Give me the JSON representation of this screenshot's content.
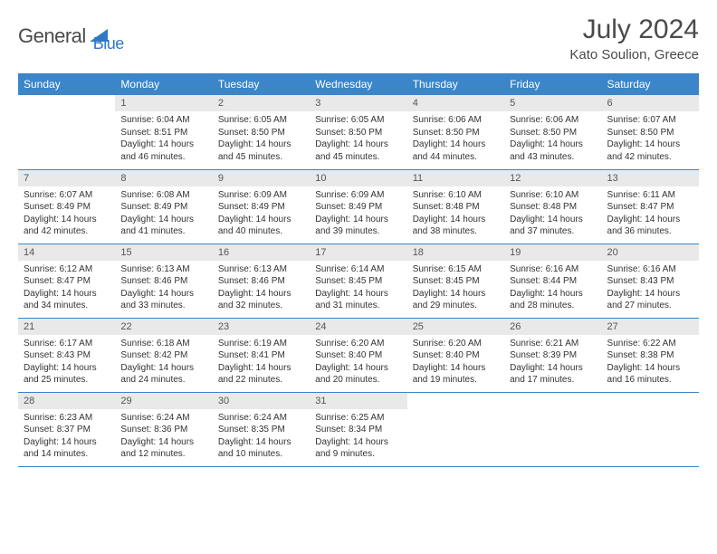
{
  "logo": {
    "text1": "General",
    "text2": "Blue"
  },
  "title": "July 2024",
  "location": "Kato Soulion, Greece",
  "colors": {
    "header_bg": "#3b85c8",
    "header_fg": "#ffffff",
    "daynum_bg": "#e9e9e9",
    "border": "#3b85c8",
    "logo_blue": "#2f78c4"
  },
  "weekdays": [
    "Sunday",
    "Monday",
    "Tuesday",
    "Wednesday",
    "Thursday",
    "Friday",
    "Saturday"
  ],
  "weeks": [
    [
      null,
      {
        "n": "1",
        "sr": "6:04 AM",
        "ss": "8:51 PM",
        "dl": "14 hours and 46 minutes."
      },
      {
        "n": "2",
        "sr": "6:05 AM",
        "ss": "8:50 PM",
        "dl": "14 hours and 45 minutes."
      },
      {
        "n": "3",
        "sr": "6:05 AM",
        "ss": "8:50 PM",
        "dl": "14 hours and 45 minutes."
      },
      {
        "n": "4",
        "sr": "6:06 AM",
        "ss": "8:50 PM",
        "dl": "14 hours and 44 minutes."
      },
      {
        "n": "5",
        "sr": "6:06 AM",
        "ss": "8:50 PM",
        "dl": "14 hours and 43 minutes."
      },
      {
        "n": "6",
        "sr": "6:07 AM",
        "ss": "8:50 PM",
        "dl": "14 hours and 42 minutes."
      }
    ],
    [
      {
        "n": "7",
        "sr": "6:07 AM",
        "ss": "8:49 PM",
        "dl": "14 hours and 42 minutes."
      },
      {
        "n": "8",
        "sr": "6:08 AM",
        "ss": "8:49 PM",
        "dl": "14 hours and 41 minutes."
      },
      {
        "n": "9",
        "sr": "6:09 AM",
        "ss": "8:49 PM",
        "dl": "14 hours and 40 minutes."
      },
      {
        "n": "10",
        "sr": "6:09 AM",
        "ss": "8:49 PM",
        "dl": "14 hours and 39 minutes."
      },
      {
        "n": "11",
        "sr": "6:10 AM",
        "ss": "8:48 PM",
        "dl": "14 hours and 38 minutes."
      },
      {
        "n": "12",
        "sr": "6:10 AM",
        "ss": "8:48 PM",
        "dl": "14 hours and 37 minutes."
      },
      {
        "n": "13",
        "sr": "6:11 AM",
        "ss": "8:47 PM",
        "dl": "14 hours and 36 minutes."
      }
    ],
    [
      {
        "n": "14",
        "sr": "6:12 AM",
        "ss": "8:47 PM",
        "dl": "14 hours and 34 minutes."
      },
      {
        "n": "15",
        "sr": "6:13 AM",
        "ss": "8:46 PM",
        "dl": "14 hours and 33 minutes."
      },
      {
        "n": "16",
        "sr": "6:13 AM",
        "ss": "8:46 PM",
        "dl": "14 hours and 32 minutes."
      },
      {
        "n": "17",
        "sr": "6:14 AM",
        "ss": "8:45 PM",
        "dl": "14 hours and 31 minutes."
      },
      {
        "n": "18",
        "sr": "6:15 AM",
        "ss": "8:45 PM",
        "dl": "14 hours and 29 minutes."
      },
      {
        "n": "19",
        "sr": "6:16 AM",
        "ss": "8:44 PM",
        "dl": "14 hours and 28 minutes."
      },
      {
        "n": "20",
        "sr": "6:16 AM",
        "ss": "8:43 PM",
        "dl": "14 hours and 27 minutes."
      }
    ],
    [
      {
        "n": "21",
        "sr": "6:17 AM",
        "ss": "8:43 PM",
        "dl": "14 hours and 25 minutes."
      },
      {
        "n": "22",
        "sr": "6:18 AM",
        "ss": "8:42 PM",
        "dl": "14 hours and 24 minutes."
      },
      {
        "n": "23",
        "sr": "6:19 AM",
        "ss": "8:41 PM",
        "dl": "14 hours and 22 minutes."
      },
      {
        "n": "24",
        "sr": "6:20 AM",
        "ss": "8:40 PM",
        "dl": "14 hours and 20 minutes."
      },
      {
        "n": "25",
        "sr": "6:20 AM",
        "ss": "8:40 PM",
        "dl": "14 hours and 19 minutes."
      },
      {
        "n": "26",
        "sr": "6:21 AM",
        "ss": "8:39 PM",
        "dl": "14 hours and 17 minutes."
      },
      {
        "n": "27",
        "sr": "6:22 AM",
        "ss": "8:38 PM",
        "dl": "14 hours and 16 minutes."
      }
    ],
    [
      {
        "n": "28",
        "sr": "6:23 AM",
        "ss": "8:37 PM",
        "dl": "14 hours and 14 minutes."
      },
      {
        "n": "29",
        "sr": "6:24 AM",
        "ss": "8:36 PM",
        "dl": "14 hours and 12 minutes."
      },
      {
        "n": "30",
        "sr": "6:24 AM",
        "ss": "8:35 PM",
        "dl": "14 hours and 10 minutes."
      },
      {
        "n": "31",
        "sr": "6:25 AM",
        "ss": "8:34 PM",
        "dl": "14 hours and 9 minutes."
      },
      null,
      null,
      null
    ]
  ],
  "labels": {
    "sunrise": "Sunrise:",
    "sunset": "Sunset:",
    "daylight": "Daylight:"
  }
}
